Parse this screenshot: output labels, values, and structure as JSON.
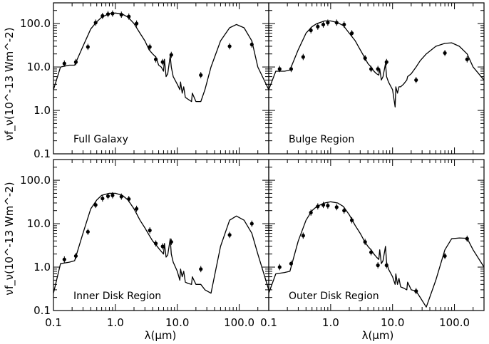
{
  "chart_data": {
    "type": "line",
    "title": "",
    "xlabel": "λ(μm)",
    "ylabel": "νf_ν(10^-13 Wm^-2)",
    "xscale": "log",
    "yscale": "log",
    "xlim": [
      0.1,
      300
    ],
    "ylim": [
      0.1,
      300
    ],
    "x_tick_labels": [
      "0.1",
      "1.0",
      "10.0",
      "100.0"
    ],
    "y_tick_labels": [
      "0.1",
      "1.0",
      "10.0",
      "100.0"
    ],
    "panels": [
      {
        "label": "Full Galaxy",
        "observed": {
          "x": [
            0.15,
            0.23,
            0.36,
            0.48,
            0.62,
            0.76,
            0.9,
            1.25,
            1.65,
            2.2,
            3.6,
            4.5,
            5.8,
            8.0,
            24,
            70,
            160
          ],
          "y": [
            12,
            13,
            29,
            105,
            150,
            165,
            170,
            160,
            145,
            100,
            29,
            15,
            13,
            19,
            6.5,
            30,
            33
          ]
        },
        "model": {
          "x": [
            0.1,
            0.13,
            0.18,
            0.22,
            0.3,
            0.4,
            0.5,
            0.6,
            0.8,
            1.0,
            1.3,
            1.6,
            2.0,
            2.5,
            3.0,
            3.5,
            4.0,
            4.5,
            5.0,
            5.5,
            6.0,
            6.2,
            6.6,
            7.0,
            7.7,
            8.0,
            8.6,
            10,
            11,
            11.3,
            12,
            12.7,
            13.5,
            15,
            17,
            17.5,
            20,
            24,
            28,
            35,
            50,
            70,
            90,
            120,
            160,
            200,
            300
          ],
          "y": [
            3,
            10,
            11,
            11,
            30,
            75,
            110,
            140,
            170,
            175,
            165,
            140,
            100,
            60,
            40,
            25,
            20,
            17,
            11,
            10,
            8,
            15,
            6,
            7,
            18,
            10,
            6,
            4,
            3,
            4.5,
            2.5,
            3.5,
            2,
            1.8,
            1.6,
            2.5,
            1.6,
            1.6,
            3,
            10,
            40,
            80,
            95,
            80,
            40,
            10,
            3
          ]
        }
      },
      {
        "label": "Bulge Region",
        "observed": {
          "x": [
            0.15,
            0.23,
            0.36,
            0.48,
            0.62,
            0.76,
            0.9,
            1.25,
            1.65,
            2.2,
            3.6,
            4.5,
            5.8,
            8.0,
            24,
            70,
            160
          ],
          "y": [
            9,
            9,
            17,
            70,
            85,
            95,
            105,
            105,
            95,
            60,
            16,
            9,
            9,
            13,
            5,
            21,
            15
          ]
        },
        "model": {
          "x": [
            0.1,
            0.13,
            0.18,
            0.22,
            0.3,
            0.4,
            0.5,
            0.6,
            0.8,
            1.0,
            1.3,
            1.6,
            2.0,
            2.5,
            3.0,
            3.5,
            4.0,
            4.5,
            5.0,
            5.5,
            6.0,
            6.2,
            6.6,
            7.0,
            7.7,
            8.0,
            8.6,
            10,
            11,
            11.3,
            12,
            12.7,
            13.5,
            15,
            17,
            17.5,
            20,
            24,
            28,
            35,
            50,
            70,
            90,
            120,
            160,
            200,
            300
          ],
          "y": [
            3,
            8,
            8,
            8.5,
            25,
            60,
            85,
            100,
            115,
            115,
            105,
            90,
            60,
            40,
            25,
            17,
            12,
            10,
            8,
            7,
            6.5,
            9,
            5,
            6,
            12,
            6,
            4.5,
            3,
            1.2,
            3.5,
            2.5,
            3.5,
            3.5,
            4,
            5,
            6,
            7,
            10,
            14,
            20,
            30,
            35,
            36,
            30,
            20,
            10,
            5
          ]
        }
      },
      {
        "label": "Inner Disk Region",
        "observed": {
          "x": [
            0.15,
            0.23,
            0.36,
            0.48,
            0.62,
            0.76,
            0.9,
            1.25,
            1.65,
            2.2,
            3.6,
            4.5,
            5.8,
            8.0,
            24,
            70,
            160
          ],
          "y": [
            1.5,
            1.8,
            6.5,
            27,
            38,
            43,
            45,
            42,
            37,
            22,
            7,
            3.5,
            3,
            3.8,
            0.9,
            5.5,
            10
          ]
        },
        "model": {
          "x": [
            0.1,
            0.13,
            0.18,
            0.22,
            0.3,
            0.4,
            0.5,
            0.6,
            0.8,
            1.0,
            1.3,
            1.6,
            2.0,
            2.5,
            3.0,
            3.5,
            4.0,
            4.5,
            5.0,
            5.5,
            6.0,
            6.2,
            6.6,
            7.0,
            7.7,
            8.0,
            8.6,
            10,
            11,
            11.3,
            12,
            12.7,
            13.5,
            15,
            17,
            17.5,
            20,
            24,
            28,
            35,
            50,
            70,
            90,
            120,
            160,
            200,
            300
          ],
          "y": [
            0.25,
            1.2,
            1.3,
            1.4,
            6,
            22,
            35,
            45,
            50,
            50,
            45,
            35,
            22,
            12,
            8,
            5.5,
            4,
            3.3,
            2.7,
            2.3,
            2,
            3.5,
            1.7,
            1.9,
            4.5,
            2,
            1.3,
            0.8,
            0.5,
            0.9,
            0.6,
            0.8,
            0.45,
            0.42,
            0.4,
            0.6,
            0.4,
            0.4,
            0.3,
            0.25,
            3,
            12,
            15,
            12,
            6,
            2,
            0.3
          ]
        }
      },
      {
        "label": "Outer Disk Region",
        "observed": {
          "x": [
            0.15,
            0.23,
            0.36,
            0.48,
            0.62,
            0.76,
            0.9,
            1.25,
            1.65,
            2.2,
            3.6,
            4.5,
            5.8,
            8.0,
            24,
            70,
            160
          ],
          "y": [
            1.0,
            1.2,
            5.3,
            18,
            25,
            27,
            26,
            24,
            20,
            12,
            3.8,
            2.2,
            1.1,
            1.1,
            0.28,
            1.8,
            4.5
          ]
        },
        "model": {
          "x": [
            0.1,
            0.13,
            0.18,
            0.22,
            0.3,
            0.4,
            0.5,
            0.6,
            0.8,
            1.0,
            1.3,
            1.6,
            2.0,
            2.5,
            3.0,
            3.5,
            4.0,
            4.5,
            5.0,
            5.5,
            6.0,
            6.2,
            6.6,
            7.0,
            7.7,
            8.0,
            8.6,
            10,
            11,
            11.3,
            12,
            12.7,
            13.5,
            15,
            17,
            17.5,
            20,
            24,
            28,
            35,
            50,
            70,
            90,
            120,
            160,
            200,
            300
          ],
          "y": [
            0.25,
            0.7,
            0.75,
            0.8,
            4,
            12,
            20,
            25,
            30,
            32,
            30,
            25,
            16,
            9,
            6,
            4,
            3,
            2.5,
            2,
            1.7,
            1.5,
            2.5,
            1.2,
            1.4,
            3,
            1.3,
            0.9,
            0.6,
            0.4,
            0.7,
            0.4,
            0.55,
            0.35,
            0.33,
            0.3,
            0.45,
            0.3,
            0.28,
            0.2,
            0.12,
            0.5,
            2.5,
            4.5,
            4.7,
            4.6,
            2.5,
            1.0
          ]
        }
      }
    ]
  }
}
